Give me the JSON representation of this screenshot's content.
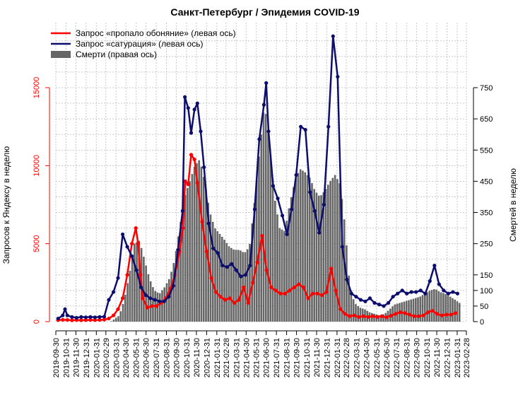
{
  "colors": {
    "smell": "#ff0000",
    "saturation": "#0d0d6e",
    "deaths": "#666666",
    "left_axis": "#ff0000",
    "grid": "#c8c8c8"
  },
  "chart_data": {
    "type": "bar+line",
    "title": "Санкт-Петербург / Эпидемия COVID-19",
    "ylabel_left": "Запросов к Яндексу в неделю",
    "ylabel_right": "Смертей в неделю",
    "ylim_left": [
      0,
      15000
    ],
    "ylim_right": [
      0,
      750
    ],
    "yticks_left": [
      "0",
      "5000",
      "10000",
      "15000"
    ],
    "yticks_right": [
      "0",
      "50",
      "100",
      "150",
      "250",
      "350",
      "450",
      "550",
      "650",
      "750"
    ],
    "yticks_right_values": [
      0,
      50,
      100,
      150,
      250,
      350,
      450,
      550,
      650,
      750
    ],
    "x_range": [
      "2019-09-30",
      "2023-02-28"
    ],
    "xticks": [
      "2019-09-30",
      "2019-10-31",
      "2019-11-30",
      "2019-12-31",
      "2020-01-31",
      "2020-02-29",
      "2020-03-31",
      "2020-04-30",
      "2020-05-31",
      "2020-06-30",
      "2020-07-31",
      "2020-08-31",
      "2020-09-30",
      "2020-10-31",
      "2020-11-30",
      "2020-12-31",
      "2021-01-31",
      "2021-02-28",
      "2021-03-31",
      "2021-04-30",
      "2021-05-31",
      "2021-06-30",
      "2021-07-31",
      "2021-08-31",
      "2021-09-30",
      "2021-10-31",
      "2021-11-30",
      "2021-12-31",
      "2022-01-31",
      "2022-02-28",
      "2022-03-31",
      "2022-04-30",
      "2022-05-31",
      "2022-06-30",
      "2022-07-31",
      "2022-08-31",
      "2022-09-30",
      "2022-10-31",
      "2022-11-30",
      "2022-12-31",
      "2023-01-31",
      "2023-02-28"
    ],
    "grid": true,
    "legend_position": "top-left",
    "legend": [
      "Запрос «пропало обоняние» (левая ось)",
      "Запрос «сатурация» (левая ось)",
      "Смерти (правая ось)"
    ],
    "series": [
      {
        "name": "Запрос «пропало обоняние» (левая ось)",
        "axis": "left",
        "type": "line",
        "points": [
          [
            "2019-10-07",
            100
          ],
          [
            "2019-10-21",
            120
          ],
          [
            "2019-11-04",
            110
          ],
          [
            "2019-11-18",
            90
          ],
          [
            "2019-12-02",
            100
          ],
          [
            "2019-12-16",
            90
          ],
          [
            "2019-12-30",
            100
          ],
          [
            "2020-01-13",
            110
          ],
          [
            "2020-01-27",
            100
          ],
          [
            "2020-02-10",
            110
          ],
          [
            "2020-02-24",
            130
          ],
          [
            "2020-03-09",
            200
          ],
          [
            "2020-03-23",
            400
          ],
          [
            "2020-04-06",
            800
          ],
          [
            "2020-04-20",
            1500
          ],
          [
            "2020-05-04",
            3000
          ],
          [
            "2020-05-18",
            5000
          ],
          [
            "2020-05-30",
            6000
          ],
          [
            "2020-06-06",
            5000
          ],
          [
            "2020-06-13",
            3000
          ],
          [
            "2020-06-20",
            1500
          ],
          [
            "2020-07-04",
            900
          ],
          [
            "2020-07-18",
            1000
          ],
          [
            "2020-08-01",
            1000
          ],
          [
            "2020-08-15",
            1200
          ],
          [
            "2020-08-29",
            1500
          ],
          [
            "2020-09-12",
            2100
          ],
          [
            "2020-09-26",
            3000
          ],
          [
            "2020-10-10",
            4500
          ],
          [
            "2020-10-20",
            6000
          ],
          [
            "2020-10-27",
            9000
          ],
          [
            "2020-11-05",
            8800
          ],
          [
            "2020-11-14",
            10700
          ],
          [
            "2020-11-24",
            10400
          ],
          [
            "2020-12-03",
            8900
          ],
          [
            "2020-12-17",
            6400
          ],
          [
            "2020-12-31",
            4500
          ],
          [
            "2021-01-14",
            2800
          ],
          [
            "2021-01-28",
            1900
          ],
          [
            "2021-02-11",
            1600
          ],
          [
            "2021-02-25",
            1400
          ],
          [
            "2021-03-11",
            1500
          ],
          [
            "2021-03-25",
            1200
          ],
          [
            "2021-04-08",
            1400
          ],
          [
            "2021-04-22",
            2200
          ],
          [
            "2021-05-06",
            1200
          ],
          [
            "2021-05-20",
            2500
          ],
          [
            "2021-06-03",
            3800
          ],
          [
            "2021-06-17",
            5500
          ],
          [
            "2021-07-01",
            3300
          ],
          [
            "2021-07-15",
            2200
          ],
          [
            "2021-07-29",
            2000
          ],
          [
            "2021-08-12",
            1800
          ],
          [
            "2021-08-26",
            1800
          ],
          [
            "2021-09-09",
            2000
          ],
          [
            "2021-09-23",
            2200
          ],
          [
            "2021-10-07",
            2400
          ],
          [
            "2021-10-21",
            2200
          ],
          [
            "2021-11-04",
            1500
          ],
          [
            "2021-11-18",
            1800
          ],
          [
            "2021-12-02",
            1800
          ],
          [
            "2021-12-16",
            1700
          ],
          [
            "2021-12-30",
            1900
          ],
          [
            "2022-01-13",
            3400
          ],
          [
            "2022-01-27",
            2000
          ],
          [
            "2022-02-10",
            800
          ],
          [
            "2022-02-24",
            500
          ],
          [
            "2022-03-10",
            350
          ],
          [
            "2022-03-24",
            400
          ],
          [
            "2022-04-07",
            300
          ],
          [
            "2022-04-21",
            350
          ],
          [
            "2022-05-05",
            300
          ],
          [
            "2022-05-19",
            350
          ],
          [
            "2022-06-02",
            300
          ],
          [
            "2022-06-16",
            350
          ],
          [
            "2022-06-30",
            280
          ],
          [
            "2022-07-14",
            380
          ],
          [
            "2022-07-28",
            500
          ],
          [
            "2022-08-11",
            600
          ],
          [
            "2022-08-25",
            550
          ],
          [
            "2022-09-08",
            450
          ],
          [
            "2022-09-22",
            350
          ],
          [
            "2022-10-06",
            350
          ],
          [
            "2022-10-20",
            400
          ],
          [
            "2022-11-03",
            600
          ],
          [
            "2022-11-17",
            700
          ],
          [
            "2022-12-01",
            500
          ],
          [
            "2022-12-15",
            400
          ],
          [
            "2022-12-29",
            450
          ],
          [
            "2023-01-12",
            450
          ],
          [
            "2023-01-26",
            550
          ]
        ]
      },
      {
        "name": "Запрос «сатурация» (левая ось)",
        "axis": "left",
        "type": "line",
        "points": [
          [
            "2019-10-07",
            200
          ],
          [
            "2019-10-21",
            400
          ],
          [
            "2019-10-28",
            800
          ],
          [
            "2019-11-04",
            400
          ],
          [
            "2019-11-18",
            300
          ],
          [
            "2019-12-02",
            250
          ],
          [
            "2019-12-16",
            300
          ],
          [
            "2019-12-30",
            280
          ],
          [
            "2020-01-13",
            300
          ],
          [
            "2020-01-27",
            280
          ],
          [
            "2020-02-10",
            300
          ],
          [
            "2020-02-24",
            320
          ],
          [
            "2020-03-09",
            1400
          ],
          [
            "2020-03-23",
            1900
          ],
          [
            "2020-04-06",
            2800
          ],
          [
            "2020-04-20",
            5600
          ],
          [
            "2020-05-04",
            4800
          ],
          [
            "2020-05-18",
            4200
          ],
          [
            "2020-06-01",
            3300
          ],
          [
            "2020-06-15",
            2200
          ],
          [
            "2020-06-29",
            1700
          ],
          [
            "2020-07-13",
            1500
          ],
          [
            "2020-07-27",
            1400
          ],
          [
            "2020-08-10",
            1300
          ],
          [
            "2020-08-24",
            1300
          ],
          [
            "2020-09-07",
            1600
          ],
          [
            "2020-09-21",
            2300
          ],
          [
            "2020-10-05",
            4600
          ],
          [
            "2020-10-19",
            7100
          ],
          [
            "2020-10-26",
            14400
          ],
          [
            "2020-11-05",
            13700
          ],
          [
            "2020-11-14",
            12100
          ],
          [
            "2020-11-24",
            13600
          ],
          [
            "2020-12-03",
            14000
          ],
          [
            "2020-12-13",
            12200
          ],
          [
            "2020-12-23",
            9900
          ],
          [
            "2021-01-06",
            6300
          ],
          [
            "2021-01-20",
            4700
          ],
          [
            "2021-02-03",
            4400
          ],
          [
            "2021-02-17",
            3600
          ],
          [
            "2021-03-03",
            3500
          ],
          [
            "2021-03-17",
            3700
          ],
          [
            "2021-03-31",
            3300
          ],
          [
            "2021-04-14",
            2900
          ],
          [
            "2021-04-28",
            3000
          ],
          [
            "2021-05-12",
            3600
          ],
          [
            "2021-05-26",
            7200
          ],
          [
            "2021-06-09",
            11700
          ],
          [
            "2021-06-23",
            13900
          ],
          [
            "2021-06-30",
            15300
          ],
          [
            "2021-07-07",
            12200
          ],
          [
            "2021-07-21",
            8700
          ],
          [
            "2021-08-04",
            7900
          ],
          [
            "2021-08-18",
            6800
          ],
          [
            "2021-09-01",
            5600
          ],
          [
            "2021-09-15",
            7200
          ],
          [
            "2021-09-29",
            9400
          ],
          [
            "2021-10-13",
            12500
          ],
          [
            "2021-10-27",
            12300
          ],
          [
            "2021-11-10",
            8300
          ],
          [
            "2021-11-24",
            7100
          ],
          [
            "2021-12-08",
            5700
          ],
          [
            "2021-12-22",
            7500
          ],
          [
            "2022-01-05",
            12500
          ],
          [
            "2022-01-19",
            18300
          ],
          [
            "2022-02-02",
            15700
          ],
          [
            "2022-02-16",
            4800
          ],
          [
            "2022-03-02",
            2700
          ],
          [
            "2022-03-16",
            1800
          ],
          [
            "2022-03-30",
            1600
          ],
          [
            "2022-04-13",
            1400
          ],
          [
            "2022-04-27",
            1300
          ],
          [
            "2022-05-11",
            1500
          ],
          [
            "2022-05-25",
            1200
          ],
          [
            "2022-06-08",
            1100
          ],
          [
            "2022-06-22",
            1000
          ],
          [
            "2022-07-06",
            1200
          ],
          [
            "2022-07-20",
            1600
          ],
          [
            "2022-08-03",
            1800
          ],
          [
            "2022-08-17",
            2000
          ],
          [
            "2022-08-31",
            1800
          ],
          [
            "2022-09-14",
            1900
          ],
          [
            "2022-09-28",
            1900
          ],
          [
            "2022-10-12",
            2000
          ],
          [
            "2022-10-26",
            1800
          ],
          [
            "2022-11-09",
            2600
          ],
          [
            "2022-11-23",
            3600
          ],
          [
            "2022-12-07",
            2400
          ],
          [
            "2022-12-21",
            2000
          ],
          [
            "2023-01-04",
            1800
          ],
          [
            "2023-01-18",
            1900
          ],
          [
            "2023-02-01",
            1800
          ]
        ]
      },
      {
        "name": "Смерти (правая ось)",
        "axis": "right",
        "type": "bar",
        "anchors": [
          [
            "2019-10-01",
            0
          ],
          [
            "2020-03-15",
            0
          ],
          [
            "2020-04-10",
            20
          ],
          [
            "2020-04-25",
            70
          ],
          [
            "2020-05-10",
            150
          ],
          [
            "2020-05-25",
            250
          ],
          [
            "2020-06-10",
            260
          ],
          [
            "2020-06-25",
            200
          ],
          [
            "2020-07-10",
            140
          ],
          [
            "2020-07-25",
            100
          ],
          [
            "2020-08-10",
            90
          ],
          [
            "2020-08-25",
            110
          ],
          [
            "2020-09-10",
            140
          ],
          [
            "2020-09-25",
            200
          ],
          [
            "2020-10-10",
            300
          ],
          [
            "2020-10-25",
            400
          ],
          [
            "2020-11-10",
            450
          ],
          [
            "2020-11-25",
            500
          ],
          [
            "2020-12-10",
            520
          ],
          [
            "2020-12-25",
            450
          ],
          [
            "2021-01-10",
            350
          ],
          [
            "2021-01-25",
            300
          ],
          [
            "2021-02-10",
            280
          ],
          [
            "2021-02-25",
            260
          ],
          [
            "2021-03-10",
            240
          ],
          [
            "2021-03-25",
            230
          ],
          [
            "2021-04-10",
            230
          ],
          [
            "2021-04-25",
            220
          ],
          [
            "2021-05-10",
            240
          ],
          [
            "2021-05-25",
            380
          ],
          [
            "2021-06-10",
            550
          ],
          [
            "2021-06-25",
            700
          ],
          [
            "2021-07-10",
            570
          ],
          [
            "2021-07-25",
            400
          ],
          [
            "2021-08-10",
            300
          ],
          [
            "2021-08-25",
            290
          ],
          [
            "2021-09-10",
            380
          ],
          [
            "2021-09-25",
            450
          ],
          [
            "2021-10-10",
            490
          ],
          [
            "2021-10-25",
            480
          ],
          [
            "2021-11-10",
            460
          ],
          [
            "2021-11-25",
            420
          ],
          [
            "2021-12-10",
            400
          ],
          [
            "2021-12-25",
            420
          ],
          [
            "2022-01-10",
            450
          ],
          [
            "2022-01-25",
            470
          ],
          [
            "2022-02-10",
            440
          ],
          [
            "2022-02-25",
            300
          ],
          [
            "2022-03-10",
            120
          ],
          [
            "2022-03-25",
            60
          ],
          [
            "2022-04-10",
            45
          ],
          [
            "2022-04-25",
            40
          ],
          [
            "2022-05-10",
            30
          ],
          [
            "2022-05-25",
            25
          ],
          [
            "2022-06-10",
            20
          ],
          [
            "2022-06-25",
            25
          ],
          [
            "2022-07-10",
            40
          ],
          [
            "2022-07-25",
            55
          ],
          [
            "2022-08-10",
            60
          ],
          [
            "2022-08-25",
            65
          ],
          [
            "2022-09-10",
            70
          ],
          [
            "2022-09-25",
            75
          ],
          [
            "2022-10-10",
            80
          ],
          [
            "2022-10-25",
            90
          ],
          [
            "2022-11-10",
            100
          ],
          [
            "2022-11-25",
            105
          ],
          [
            "2022-12-10",
            95
          ],
          [
            "2022-12-25",
            90
          ],
          [
            "2023-01-10",
            80
          ],
          [
            "2023-01-25",
            70
          ],
          [
            "2023-02-07",
            60
          ]
        ]
      }
    ]
  }
}
